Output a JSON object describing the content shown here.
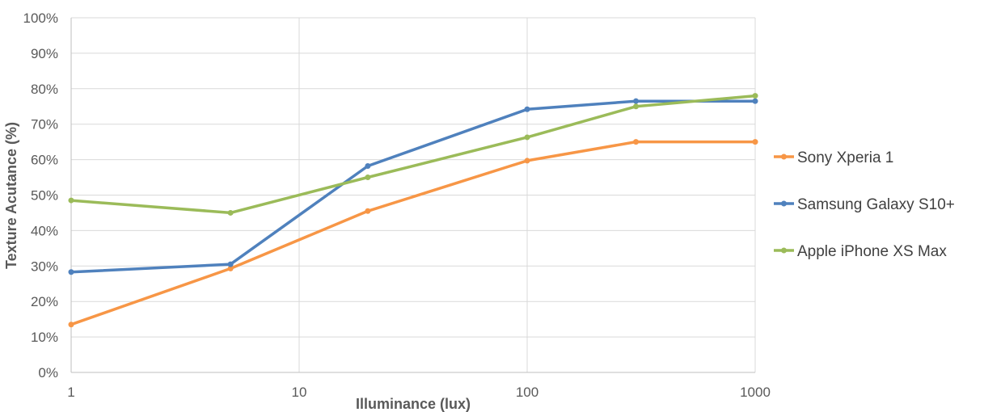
{
  "chart_data": {
    "type": "line",
    "xlabel": "Illuminance (lux)",
    "ylabel": "Texture Acutance (%)",
    "x_scale": "log",
    "xlim": [
      1,
      1000
    ],
    "ylim": [
      0,
      100
    ],
    "x_ticks": [
      "1",
      "10",
      "100",
      "1000"
    ],
    "y_ticks": [
      "0%",
      "10%",
      "20%",
      "30%",
      "40%",
      "50%",
      "60%",
      "70%",
      "80%",
      "90%",
      "100%"
    ],
    "grid": true,
    "legend_position": "right",
    "x": [
      1,
      5,
      20,
      100,
      300,
      1000
    ],
    "series": [
      {
        "name": "Sony Xperia 1",
        "color": "#F79646",
        "values": [
          13.5,
          29.3,
          45.5,
          59.7,
          65.0,
          65.0
        ]
      },
      {
        "name": "Samsung Galaxy S10+",
        "color": "#4F81BD",
        "values": [
          28.3,
          30.5,
          58.2,
          74.2,
          76.5,
          76.5
        ]
      },
      {
        "name": "Apple iPhone XS Max",
        "color": "#9BBB59",
        "values": [
          48.5,
          45.0,
          55.0,
          66.3,
          75.0,
          78.0
        ]
      }
    ]
  }
}
